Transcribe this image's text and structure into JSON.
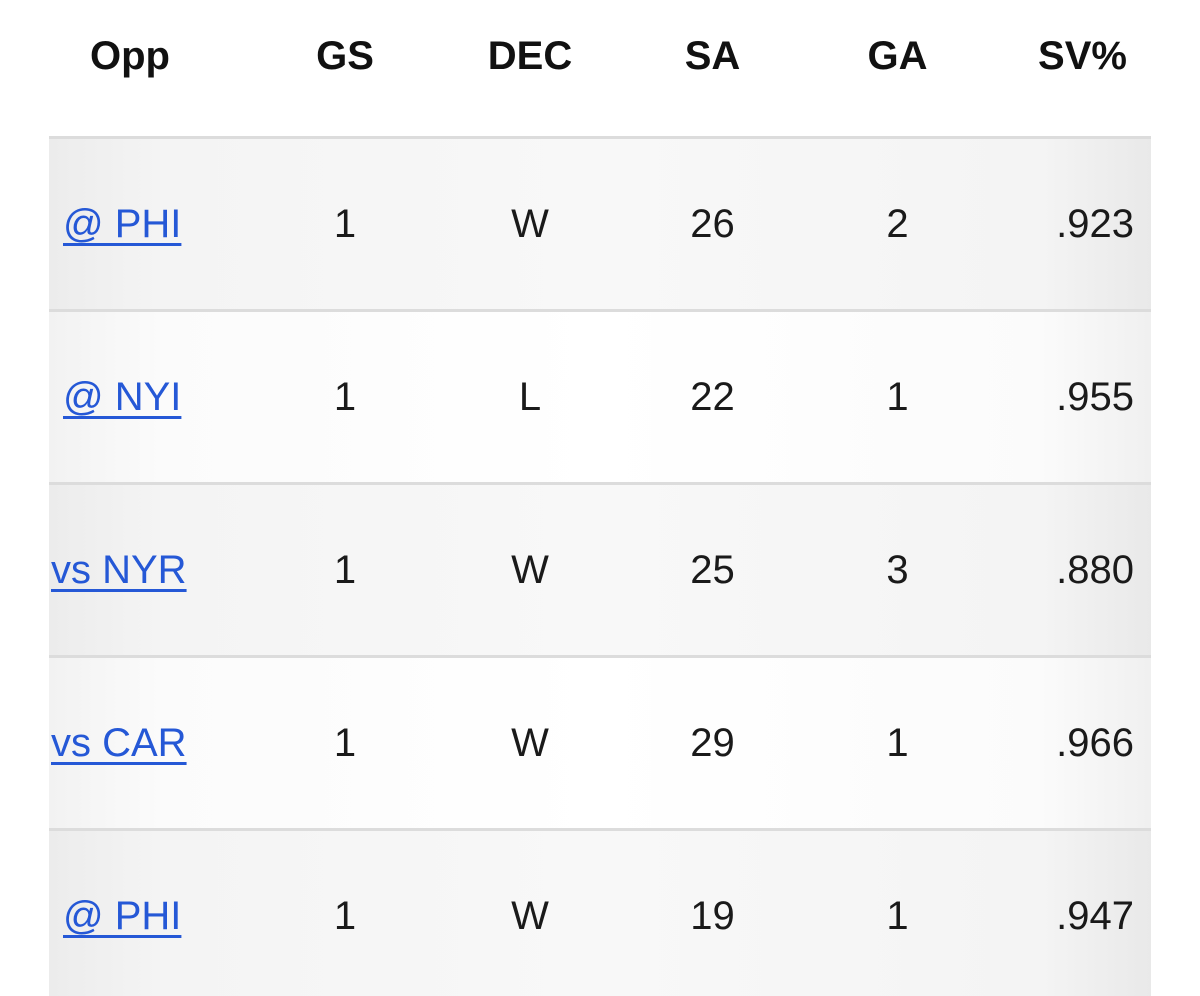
{
  "table": {
    "headers": {
      "opp": "Opp",
      "gs": "GS",
      "dec": "DEC",
      "sa": "SA",
      "ga": "GA",
      "sv_pct": "SV%"
    },
    "rows": [
      {
        "opp": "@ PHI",
        "gs": "1",
        "dec": "W",
        "sa": "26",
        "ga": "2",
        "sv_pct": ".923"
      },
      {
        "opp": "@ NYI",
        "gs": "1",
        "dec": "L",
        "sa": "22",
        "ga": "1",
        "sv_pct": ".955"
      },
      {
        "opp": "vs NYR",
        "gs": "1",
        "dec": "W",
        "sa": "25",
        "ga": "3",
        "sv_pct": ".880"
      },
      {
        "opp": "vs CAR",
        "gs": "1",
        "dec": "W",
        "sa": "29",
        "ga": "1",
        "sv_pct": ".966"
      },
      {
        "opp": "@ PHI",
        "gs": "1",
        "dec": "W",
        "sa": "19",
        "ga": "1",
        "sv_pct": ".947"
      }
    ]
  },
  "colors": {
    "link": "#2558d6",
    "divider": "#dcdcdc",
    "row_shade": "#f8f8f8"
  }
}
